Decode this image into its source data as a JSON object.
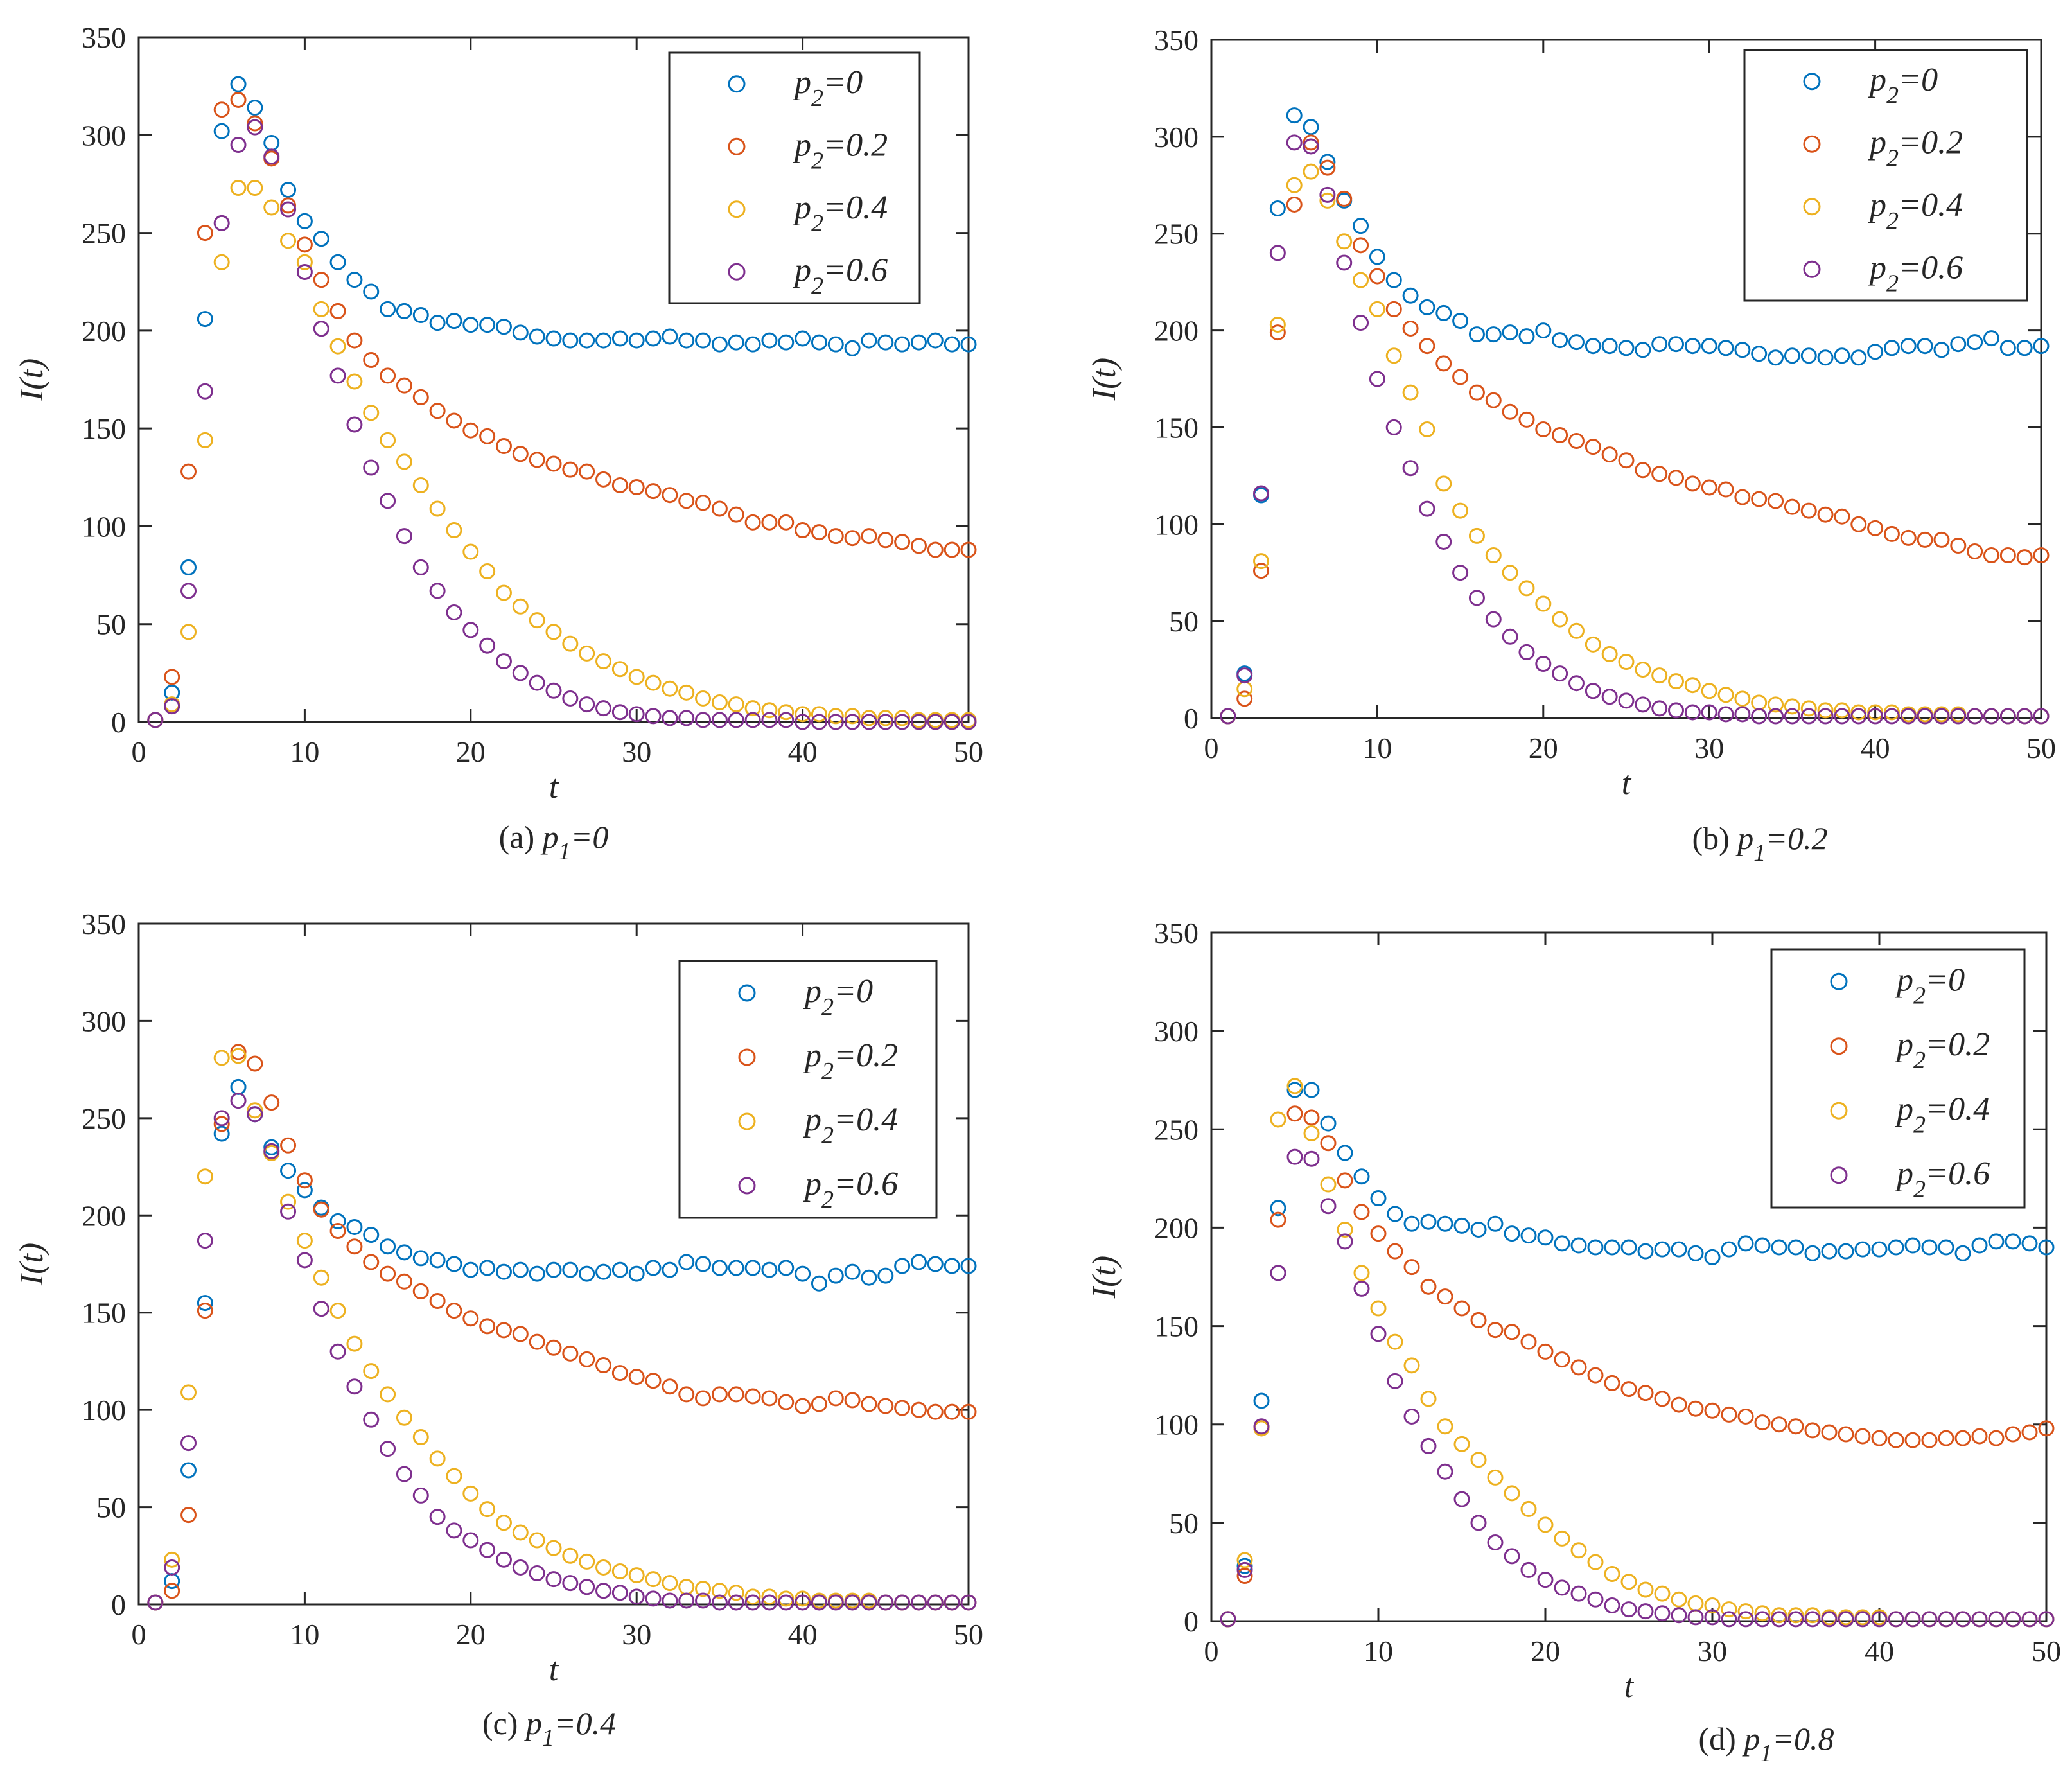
{
  "figure_colors": {
    "p2_0": "#0072BD",
    "p2_0.2": "#D95319",
    "p2_0.4": "#EDB120",
    "p2_0.6": "#7E2F8E"
  },
  "chart_data": [
    {
      "type": "scatter",
      "id": "a",
      "caption_prefix": "(a)",
      "caption_var": "p",
      "caption_sub": "1",
      "caption_value": "=0",
      "xlabel": "t",
      "ylabel": "I(t)",
      "xlim": [
        0,
        50
      ],
      "ylim": [
        0,
        350
      ],
      "xticks": [
        0,
        10,
        20,
        30,
        40,
        50
      ],
      "yticks": [
        0,
        50,
        100,
        150,
        200,
        250,
        300,
        350
      ],
      "legend_position": "top-right",
      "series": [
        {
          "name": "p_2=0",
          "legend_var": "p",
          "legend_sub": "2",
          "legend_value": "=0",
          "color": "#0072BD",
          "values": [
            1,
            15,
            79,
            206,
            302,
            326,
            314,
            296,
            272,
            256,
            247,
            235,
            226,
            220,
            211,
            210,
            208,
            204,
            205,
            203,
            203,
            202,
            199,
            197,
            196,
            195,
            195,
            195,
            196,
            195,
            196,
            197,
            195,
            195,
            193,
            194,
            193,
            195,
            194,
            196,
            194,
            193,
            191,
            195,
            194,
            193,
            194,
            195,
            193,
            193
          ]
        },
        {
          "name": "p_2=0.2",
          "legend_var": "p",
          "legend_sub": "2",
          "legend_value": "=0.2",
          "color": "#D95319",
          "values": [
            1,
            23,
            128,
            250,
            313,
            318,
            306,
            288,
            264,
            244,
            226,
            210,
            195,
            185,
            177,
            172,
            166,
            159,
            154,
            149,
            146,
            141,
            137,
            134,
            132,
            129,
            128,
            124,
            121,
            120,
            118,
            116,
            113,
            112,
            109,
            106,
            102,
            102,
            102,
            98,
            97,
            95,
            94,
            95,
            93,
            92,
            90,
            88,
            88,
            88
          ]
        },
        {
          "name": "p_2=0.4",
          "legend_var": "p",
          "legend_sub": "2",
          "legend_value": "=0.4",
          "color": "#EDB120",
          "values": [
            1,
            9,
            46,
            144,
            235,
            273,
            273,
            263,
            246,
            235,
            211,
            192,
            174,
            158,
            144,
            133,
            121,
            109,
            98,
            87,
            77,
            66,
            59,
            52,
            46,
            40,
            35,
            31,
            27,
            23,
            20,
            17,
            15,
            12,
            10,
            9,
            7,
            6,
            5,
            4,
            4,
            3,
            3,
            2,
            2,
            2,
            1,
            1,
            1,
            1
          ]
        },
        {
          "name": "p_2=0.6",
          "legend_var": "p",
          "legend_sub": "2",
          "legend_value": "=0.6",
          "color": "#7E2F8E",
          "values": [
            1,
            8,
            67,
            169,
            255,
            295,
            304,
            289,
            262,
            230,
            201,
            177,
            152,
            130,
            113,
            95,
            79,
            67,
            56,
            47,
            39,
            31,
            25,
            20,
            16,
            12,
            9,
            7,
            5,
            4,
            3,
            2,
            2,
            1,
            1,
            1,
            1,
            1,
            1,
            0,
            0,
            0,
            0,
            0,
            0,
            0,
            0,
            0,
            0,
            0
          ]
        }
      ]
    },
    {
      "type": "scatter",
      "id": "b",
      "caption_prefix": "(b)",
      "caption_var": "p",
      "caption_sub": "1",
      "caption_value": "=0.2",
      "xlabel": "t",
      "ylabel": "I(t)",
      "xlim": [
        0,
        50
      ],
      "ylim": [
        0,
        350
      ],
      "xticks": [
        0,
        10,
        20,
        30,
        40,
        50
      ],
      "yticks": [
        0,
        50,
        100,
        150,
        200,
        250,
        300,
        350
      ],
      "legend_position": "top-right",
      "series": [
        {
          "name": "p_2=0",
          "legend_var": "p",
          "legend_sub": "2",
          "legend_value": "=0",
          "color": "#0072BD",
          "values": [
            1,
            23,
            115,
            263,
            311,
            305,
            287,
            267,
            254,
            238,
            226,
            218,
            212,
            209,
            205,
            198,
            198,
            199,
            197,
            200,
            195,
            194,
            192,
            192,
            191,
            190,
            193,
            193,
            192,
            192,
            191,
            190,
            188,
            186,
            187,
            187,
            186,
            187,
            186,
            189,
            191,
            192,
            192,
            190,
            193,
            194,
            196,
            191,
            191,
            192
          ]
        },
        {
          "name": "p_2=0.2",
          "legend_var": "p",
          "legend_sub": "2",
          "legend_value": "=0.2",
          "color": "#D95319",
          "values": [
            1,
            10,
            76,
            199,
            265,
            297,
            284,
            268,
            244,
            228,
            211,
            201,
            192,
            183,
            176,
            168,
            164,
            158,
            154,
            149,
            146,
            143,
            140,
            136,
            133,
            128,
            126,
            124,
            121,
            119,
            118,
            114,
            113,
            112,
            109,
            107,
            105,
            104,
            100,
            98,
            95,
            93,
            92,
            92,
            89,
            86,
            84,
            84,
            83,
            84
          ]
        },
        {
          "name": "p_2=0.4",
          "legend_var": "p",
          "legend_sub": "2",
          "legend_value": "=0.4",
          "color": "#EDB120",
          "values": [
            1,
            15,
            81,
            203,
            275,
            282,
            267,
            246,
            226,
            211,
            187,
            168,
            149,
            121,
            107,
            94,
            84,
            75,
            67,
            59,
            51,
            45,
            38,
            33,
            29,
            25,
            22,
            19,
            17,
            14,
            12,
            10,
            8,
            7,
            6,
            5,
            4,
            4,
            3,
            3,
            3,
            2,
            2,
            2,
            2,
            1,
            1,
            1,
            1,
            1
          ]
        },
        {
          "name": "p_2=0.6",
          "legend_var": "p",
          "legend_sub": "2",
          "legend_value": "=0.6",
          "color": "#7E2F8E",
          "values": [
            1,
            22,
            116,
            240,
            297,
            295,
            270,
            235,
            204,
            175,
            150,
            129,
            108,
            91,
            75,
            62,
            51,
            42,
            34,
            28,
            23,
            18,
            14,
            11,
            9,
            7,
            5,
            4,
            3,
            3,
            2,
            2,
            1,
            1,
            1,
            1,
            1,
            1,
            1,
            1,
            1,
            1,
            1,
            1,
            1,
            1,
            1,
            1,
            1,
            1
          ]
        }
      ]
    },
    {
      "type": "scatter",
      "id": "c",
      "caption_prefix": "(c)",
      "caption_var": "p",
      "caption_sub": "1",
      "caption_value": "=0.4",
      "xlabel": "t",
      "ylabel": "I(t)",
      "xlim": [
        0,
        50
      ],
      "ylim": [
        0,
        350
      ],
      "xticks": [
        0,
        10,
        20,
        30,
        40,
        50
      ],
      "yticks": [
        0,
        50,
        100,
        150,
        200,
        250,
        300,
        350
      ],
      "legend_position": "top-right",
      "series": [
        {
          "name": "p_2=0",
          "legend_var": "p",
          "legend_sub": "2",
          "legend_value": "=0",
          "color": "#0072BD",
          "values": [
            1,
            12,
            69,
            155,
            242,
            266,
            252,
            235,
            223,
            213,
            204,
            197,
            194,
            190,
            184,
            181,
            178,
            177,
            175,
            172,
            173,
            171,
            172,
            170,
            172,
            172,
            170,
            171,
            172,
            170,
            173,
            172,
            176,
            175,
            173,
            173,
            173,
            172,
            173,
            170,
            165,
            169,
            171,
            168,
            169,
            174,
            176,
            175,
            174,
            174
          ]
        },
        {
          "name": "p_2=0.2",
          "legend_var": "p",
          "legend_sub": "2",
          "legend_value": "=0.2",
          "color": "#D95319",
          "values": [
            1,
            7,
            46,
            151,
            247,
            284,
            278,
            258,
            236,
            218,
            203,
            192,
            184,
            176,
            170,
            166,
            161,
            156,
            151,
            147,
            143,
            141,
            139,
            135,
            132,
            129,
            126,
            123,
            119,
            117,
            115,
            112,
            108,
            106,
            108,
            108,
            107,
            106,
            104,
            102,
            103,
            106,
            105,
            103,
            102,
            101,
            100,
            99,
            99,
            99
          ]
        },
        {
          "name": "p_2=0.4",
          "legend_var": "p",
          "legend_sub": "2",
          "legend_value": "=0.4",
          "color": "#EDB120",
          "values": [
            1,
            23,
            109,
            220,
            281,
            282,
            254,
            232,
            207,
            187,
            168,
            151,
            134,
            120,
            108,
            96,
            86,
            75,
            66,
            57,
            49,
            42,
            37,
            33,
            29,
            25,
            22,
            19,
            17,
            15,
            13,
            11,
            9,
            8,
            7,
            6,
            4,
            4,
            3,
            3,
            2,
            2,
            2,
            2,
            1,
            1,
            1,
            1,
            1,
            1
          ]
        },
        {
          "name": "p_2=0.6",
          "legend_var": "p",
          "legend_sub": "2",
          "legend_value": "=0.6",
          "color": "#7E2F8E",
          "values": [
            1,
            19,
            83,
            187,
            250,
            259,
            252,
            233,
            202,
            177,
            152,
            130,
            112,
            95,
            80,
            67,
            56,
            45,
            38,
            33,
            28,
            23,
            19,
            16,
            13,
            11,
            9,
            7,
            6,
            4,
            3,
            2,
            2,
            2,
            1,
            1,
            1,
            1,
            1,
            1,
            1,
            1,
            1,
            1,
            1,
            1,
            1,
            1,
            1,
            1
          ]
        }
      ]
    },
    {
      "type": "scatter",
      "id": "d",
      "caption_prefix": "(d)",
      "caption_var": "p",
      "caption_sub": "1",
      "caption_value": "=0.8",
      "xlabel": "t",
      "ylabel": "I(t)",
      "xlim": [
        0,
        50
      ],
      "ylim": [
        0,
        350
      ],
      "xticks": [
        0,
        10,
        20,
        30,
        40,
        50
      ],
      "yticks": [
        0,
        50,
        100,
        150,
        200,
        250,
        300,
        350
      ],
      "legend_position": "top-right",
      "series": [
        {
          "name": "p_2=0",
          "legend_var": "p",
          "legend_sub": "2",
          "legend_value": "=0",
          "color": "#0072BD",
          "values": [
            1,
            28,
            112,
            210,
            270,
            270,
            253,
            238,
            226,
            215,
            207,
            202,
            203,
            202,
            201,
            199,
            202,
            197,
            196,
            195,
            192,
            191,
            190,
            190,
            190,
            188,
            189,
            189,
            187,
            185,
            189,
            192,
            191,
            190,
            190,
            187,
            188,
            188,
            189,
            189,
            190,
            191,
            190,
            190,
            187,
            191,
            193,
            193,
            192,
            190
          ]
        },
        {
          "name": "p_2=0.2",
          "legend_var": "p",
          "legend_sub": "2",
          "legend_value": "=0.2",
          "color": "#D95319",
          "values": [
            1,
            23,
            98,
            204,
            258,
            256,
            243,
            224,
            208,
            197,
            188,
            180,
            170,
            165,
            159,
            153,
            148,
            147,
            142,
            137,
            133,
            129,
            125,
            121,
            118,
            116,
            113,
            110,
            108,
            107,
            105,
            104,
            101,
            100,
            99,
            97,
            96,
            95,
            94,
            93,
            92,
            92,
            92,
            93,
            93,
            94,
            93,
            95,
            96,
            98
          ]
        },
        {
          "name": "p_2=0.4",
          "legend_var": "p",
          "legend_sub": "2",
          "legend_value": "=0.4",
          "color": "#EDB120",
          "values": [
            1,
            31,
            98,
            255,
            272,
            248,
            222,
            199,
            177,
            159,
            142,
            130,
            113,
            99,
            90,
            82,
            73,
            65,
            57,
            49,
            42,
            36,
            30,
            24,
            20,
            16,
            14,
            11,
            9,
            8,
            6,
            5,
            4,
            3,
            3,
            3,
            2,
            2,
            2,
            2,
            1,
            1,
            1,
            1,
            1,
            1,
            1,
            1,
            1,
            1
          ]
        },
        {
          "name": "p_2=0.6",
          "legend_var": "p",
          "legend_sub": "2",
          "legend_value": "=0.6",
          "color": "#7E2F8E",
          "values": [
            1,
            26,
            99,
            177,
            236,
            235,
            211,
            193,
            169,
            146,
            122,
            104,
            89,
            76,
            62,
            50,
            40,
            33,
            26,
            21,
            17,
            14,
            11,
            8,
            6,
            5,
            4,
            3,
            2,
            2,
            1,
            1,
            1,
            1,
            1,
            1,
            1,
            1,
            1,
            1,
            1,
            1,
            1,
            1,
            1,
            1,
            1,
            1,
            1,
            1
          ]
        }
      ]
    }
  ]
}
